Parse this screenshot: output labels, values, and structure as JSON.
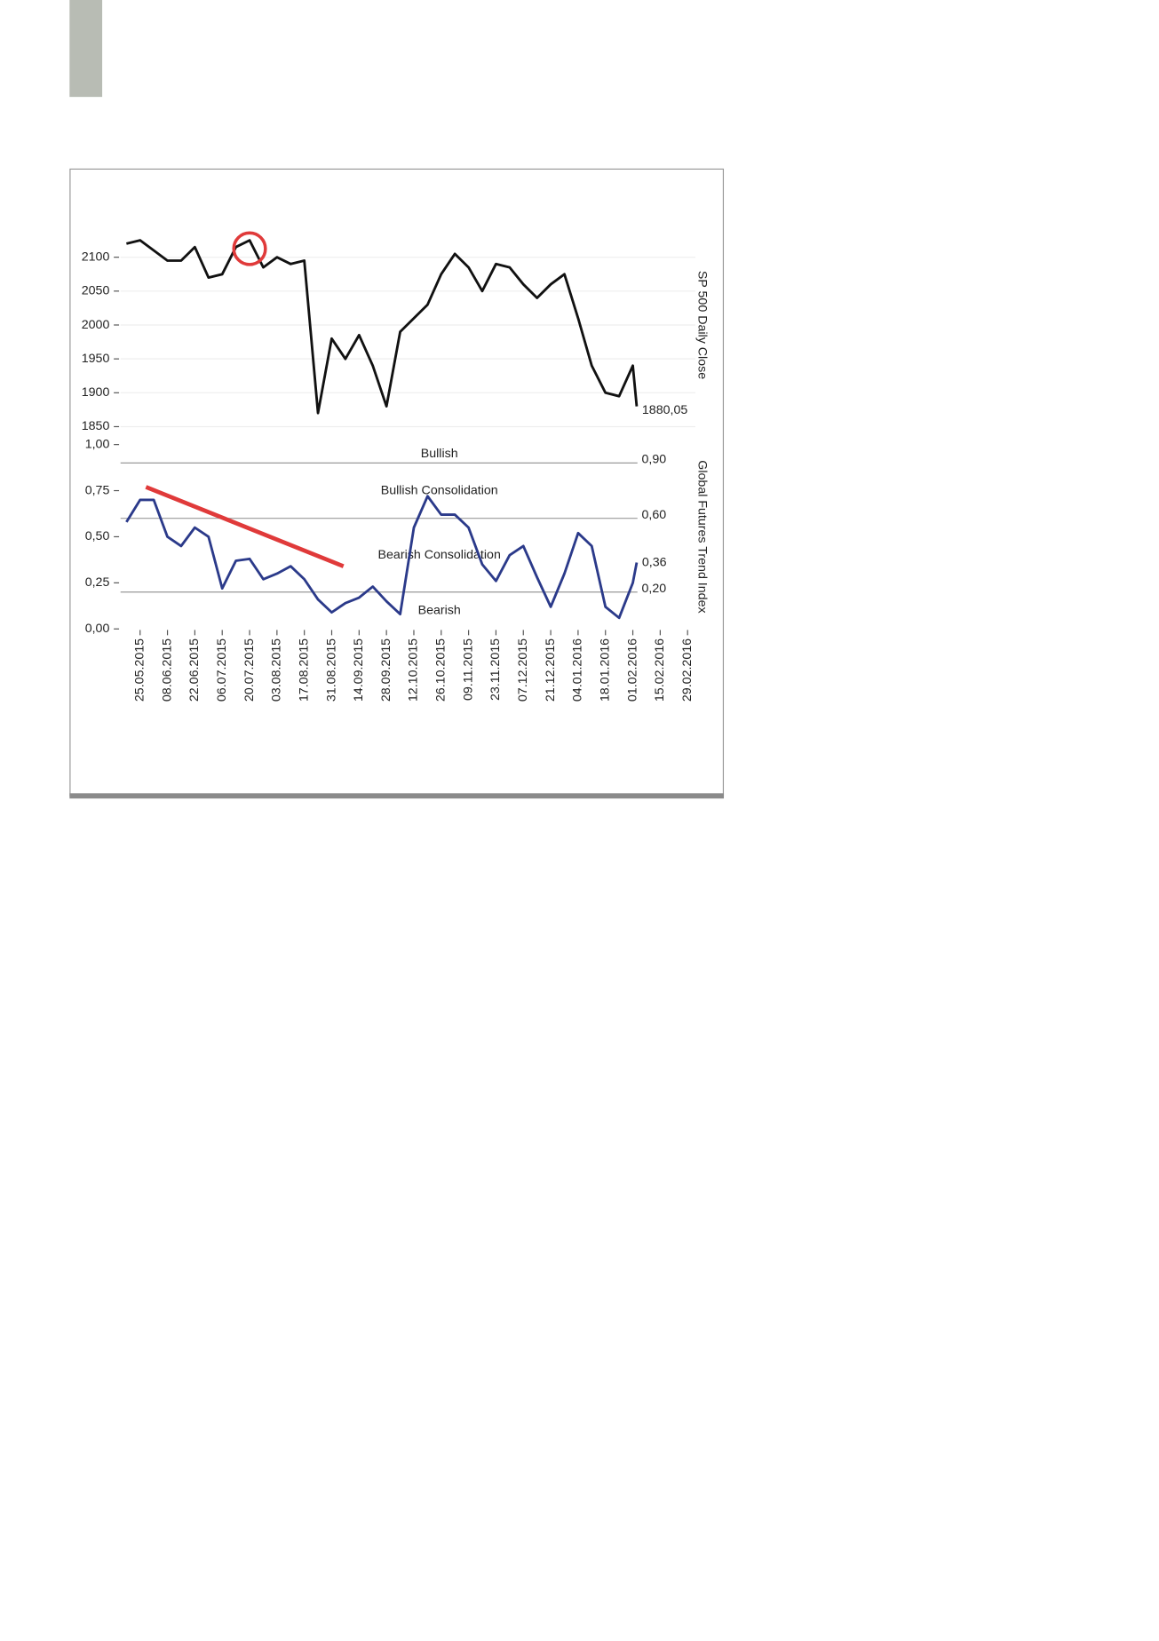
{
  "chart_data": [
    {
      "type": "line",
      "axis_title": "SP 500 Daily Close",
      "x": [
        "18.05.2015",
        "25.05.2015",
        "01.06.2015",
        "08.06.2015",
        "15.06.2015",
        "22.06.2015",
        "29.06.2015",
        "06.07.2015",
        "13.07.2015",
        "20.07.2015",
        "27.07.2015",
        "03.08.2015",
        "10.08.2015",
        "17.08.2015",
        "24.08.2015",
        "31.08.2015",
        "07.09.2015",
        "14.09.2015",
        "21.09.2015",
        "28.09.2015",
        "05.10.2015",
        "12.10.2015",
        "19.10.2015",
        "26.10.2015",
        "02.11.2015",
        "09.11.2015",
        "16.11.2015",
        "23.11.2015",
        "30.11.2015",
        "07.12.2015",
        "14.12.2015",
        "21.12.2015",
        "28.12.2015",
        "04.01.2016",
        "11.01.2016",
        "18.01.2016",
        "25.01.2016",
        "01.02.2016",
        "03.02.2016"
      ],
      "values": [
        2120,
        2125,
        2110,
        2095,
        2095,
        2115,
        2070,
        2075,
        2115,
        2125,
        2085,
        2100,
        2090,
        2095,
        1870,
        1980,
        1950,
        1985,
        1940,
        1880,
        1990,
        2010,
        2030,
        2075,
        2105,
        2085,
        2050,
        2090,
        2085,
        2060,
        2040,
        2060,
        2075,
        2010,
        1940,
        1900,
        1895,
        1940,
        1880.05
      ],
      "value_labels": [
        null,
        null,
        null,
        null,
        null,
        null,
        null,
        null,
        null,
        null,
        null,
        null,
        null,
        null,
        null,
        null,
        null,
        null,
        null,
        null,
        null,
        null,
        null,
        null,
        null,
        null,
        null,
        null,
        null,
        null,
        null,
        null,
        null,
        null,
        null,
        null,
        null,
        null,
        "1880,05"
      ],
      "color": "#111111",
      "xlim": [
        "15.05.2015",
        "04.03.2016"
      ],
      "ylim": [
        1850,
        2150
      ],
      "yticks": [
        1850,
        1900,
        1950,
        2000,
        2050,
        2100
      ],
      "highlight": {
        "x": "20.07.2015",
        "value": 2125,
        "color": "#e03a3a"
      }
    },
    {
      "type": "line",
      "axis_title": "Global Futures Trend Index",
      "x": [
        "18.05.2015",
        "25.05.2015",
        "01.06.2015",
        "08.06.2015",
        "15.06.2015",
        "22.06.2015",
        "29.06.2015",
        "06.07.2015",
        "13.07.2015",
        "20.07.2015",
        "27.07.2015",
        "03.08.2015",
        "10.08.2015",
        "17.08.2015",
        "24.08.2015",
        "31.08.2015",
        "07.09.2015",
        "14.09.2015",
        "21.09.2015",
        "28.09.2015",
        "05.10.2015",
        "12.10.2015",
        "19.10.2015",
        "26.10.2015",
        "02.11.2015",
        "09.11.2015",
        "16.11.2015",
        "23.11.2015",
        "30.11.2015",
        "07.12.2015",
        "14.12.2015",
        "21.12.2015",
        "28.12.2015",
        "04.01.2016",
        "11.01.2016",
        "18.01.2016",
        "25.01.2016",
        "01.02.2016",
        "03.02.2016"
      ],
      "values": [
        0.58,
        0.7,
        0.7,
        0.5,
        0.45,
        0.55,
        0.5,
        0.22,
        0.37,
        0.38,
        0.27,
        0.3,
        0.34,
        0.27,
        0.16,
        0.09,
        0.14,
        0.17,
        0.23,
        0.15,
        0.08,
        0.55,
        0.72,
        0.62,
        0.62,
        0.55,
        0.35,
        0.26,
        0.4,
        0.45,
        0.28,
        0.12,
        0.3,
        0.52,
        0.45,
        0.12,
        0.06,
        0.25,
        0.36
      ],
      "value_labels": [
        null,
        null,
        null,
        null,
        null,
        null,
        null,
        null,
        null,
        null,
        null,
        null,
        null,
        null,
        null,
        null,
        null,
        null,
        null,
        null,
        null,
        null,
        null,
        null,
        null,
        null,
        null,
        null,
        null,
        null,
        null,
        null,
        null,
        null,
        null,
        null,
        null,
        null,
        "0,36"
      ],
      "color": "#2b3a8a",
      "xlim": [
        "15.05.2015",
        "04.03.2016"
      ],
      "ylim": [
        0,
        1
      ],
      "yticks": [
        {
          "value": 0,
          "label": "0,00"
        },
        {
          "value": 0.25,
          "label": "0,25"
        },
        {
          "value": 0.5,
          "label": "0,50"
        },
        {
          "value": 0.75,
          "label": "0,75"
        },
        {
          "value": 1,
          "label": "1,00"
        }
      ],
      "xticks": [
        "25.05.2015",
        "08.06.2015",
        "22.06.2015",
        "06.07.2015",
        "20.07.2015",
        "03.08.2015",
        "17.08.2015",
        "31.08.2015",
        "14.09.2015",
        "28.09.2015",
        "12.10.2015",
        "26.10.2015",
        "09.11.2015",
        "23.11.2015",
        "07.12.2015",
        "21.12.2015",
        "04.01.2016",
        "18.01.2016",
        "01.02.2016",
        "15.02.2016",
        "29.02.2016"
      ],
      "levels": [
        {
          "value": 0.9,
          "label": "0,90"
        },
        {
          "value": 0.6,
          "label": "0,60"
        },
        {
          "value": 0.2,
          "label": "0,20"
        }
      ],
      "zone_labels": [
        "Bullish",
        "Bullish Consolidation",
        "Bearish Consolidation",
        "Bearish"
      ],
      "trendline": {
        "x": [
          "28.05.2015",
          "06.09.2015"
        ],
        "values": [
          0.77,
          0.34
        ],
        "color": "#e03a3a"
      }
    }
  ]
}
